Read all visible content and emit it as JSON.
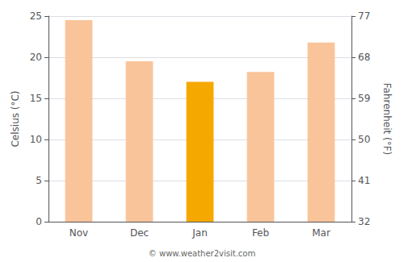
{
  "chart_data": {
    "type": "bar",
    "categories": [
      "Nov",
      "Dec",
      "Jan",
      "Feb",
      "Mar"
    ],
    "values": [
      24.5,
      19.5,
      17.0,
      18.2,
      21.8
    ],
    "colors": [
      "#f9c49a",
      "#f9c49a",
      "#f5a800",
      "#f9c49a",
      "#f9c49a"
    ],
    "ylabel": "Celsius (°C)",
    "ylim": [
      0,
      25
    ],
    "yticks": [
      0,
      5,
      10,
      15,
      20,
      25
    ],
    "y2label": "Fahrenheit (°F)",
    "y2lim": [
      32,
      77
    ],
    "y2ticks": [
      32,
      41,
      50,
      59,
      68,
      77
    ],
    "grid": true,
    "annotation": "© www.weather2visit.com"
  }
}
